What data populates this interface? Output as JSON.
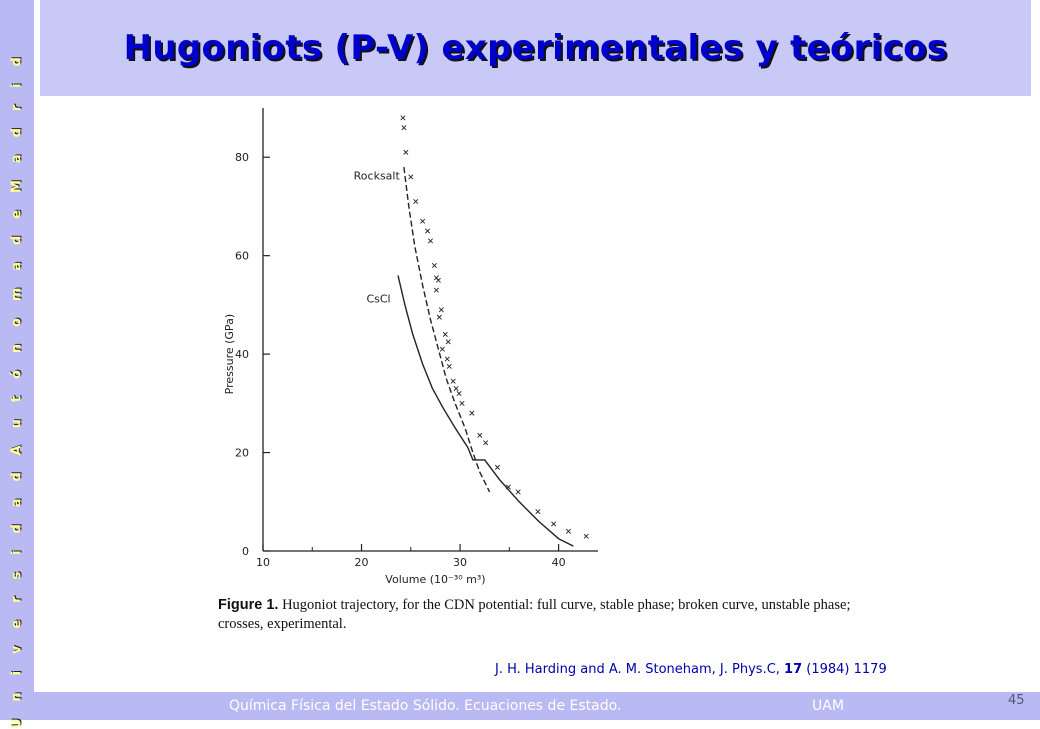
{
  "sidebar": {
    "text": "U n i v e r s i d a d   A u t ó n o m a   d e   M a d r i d"
  },
  "header": {
    "title": "Hugoniots (P-V) experimentales y teóricos"
  },
  "figure": {
    "caption_label": "Figure 1.",
    "caption_text": " Hugoniot trajectory, for the CDN potential: full curve, stable phase; broken curve, unstable phase; crosses, experimental."
  },
  "citation": {
    "prefix": "J. H. Harding and A. M. Stoneham, J. Phys.C, ",
    "volume": "17",
    "suffix": " (1984) 1179"
  },
  "footer": {
    "course": "Química Física del Estado Sólido. Ecuaciones de Estado.",
    "institution": "UAM",
    "page": "45"
  },
  "chart_data": {
    "type": "line",
    "xlabel": "Volume (10⁻³⁰ m³)",
    "ylabel": "Pressure (GPa)",
    "xlim": [
      10,
      44
    ],
    "ylim": [
      0,
      90
    ],
    "xticks": [
      10,
      20,
      30,
      40
    ],
    "yticks": [
      0,
      20,
      40,
      60,
      80
    ],
    "annotations": [
      {
        "text": "Rocksalt",
        "x": 19.2,
        "y": 75.5
      },
      {
        "text": "CsCl",
        "x": 20.5,
        "y": 50.5
      }
    ],
    "series": [
      {
        "name": "CsCl",
        "style": "solid",
        "points": [
          [
            23.7,
            56
          ],
          [
            24.4,
            50
          ],
          [
            25.2,
            44
          ],
          [
            26.2,
            38
          ],
          [
            27.2,
            33
          ],
          [
            28.3,
            29
          ],
          [
            29.5,
            25
          ],
          [
            30.8,
            21
          ],
          [
            31.3,
            18.5
          ],
          [
            32.5,
            18.5
          ],
          [
            34,
            14.5
          ],
          [
            36,
            10
          ],
          [
            38,
            6
          ],
          [
            40,
            2.5
          ],
          [
            41.5,
            1
          ]
        ]
      },
      {
        "name": "Rocksalt",
        "style": "dashed",
        "points": [
          [
            24.3,
            78
          ],
          [
            24.8,
            70
          ],
          [
            25.4,
            62
          ],
          [
            26.2,
            54
          ],
          [
            27,
            47
          ],
          [
            27.8,
            41
          ],
          [
            28.6,
            35
          ],
          [
            29.5,
            30
          ],
          [
            30.5,
            25
          ],
          [
            31.3,
            20
          ],
          [
            32,
            16
          ],
          [
            33,
            12
          ]
        ]
      },
      {
        "name": "experimental",
        "style": "crosses",
        "points": [
          [
            24.2,
            88
          ],
          [
            24.3,
            86
          ],
          [
            24.5,
            81
          ],
          [
            25.0,
            76
          ],
          [
            25.5,
            71
          ],
          [
            26.2,
            67
          ],
          [
            26.7,
            65
          ],
          [
            27,
            63
          ],
          [
            27.4,
            58
          ],
          [
            27.6,
            55.5
          ],
          [
            27.8,
            55
          ],
          [
            27.6,
            53
          ],
          [
            28.1,
            49
          ],
          [
            27.9,
            47.5
          ],
          [
            28.5,
            44
          ],
          [
            28.8,
            42.5
          ],
          [
            28.2,
            41
          ],
          [
            28.7,
            39
          ],
          [
            28.9,
            37.5
          ],
          [
            29.3,
            34.5
          ],
          [
            29.6,
            33
          ],
          [
            29.9,
            32
          ],
          [
            30.2,
            30
          ],
          [
            31.2,
            28
          ],
          [
            32,
            23.5
          ],
          [
            32.6,
            22
          ],
          [
            33.8,
            17
          ],
          [
            34.9,
            13
          ],
          [
            35.9,
            12
          ],
          [
            37.9,
            8
          ],
          [
            39.5,
            5.5
          ],
          [
            41,
            4
          ],
          [
            42.8,
            3
          ]
        ]
      }
    ]
  }
}
